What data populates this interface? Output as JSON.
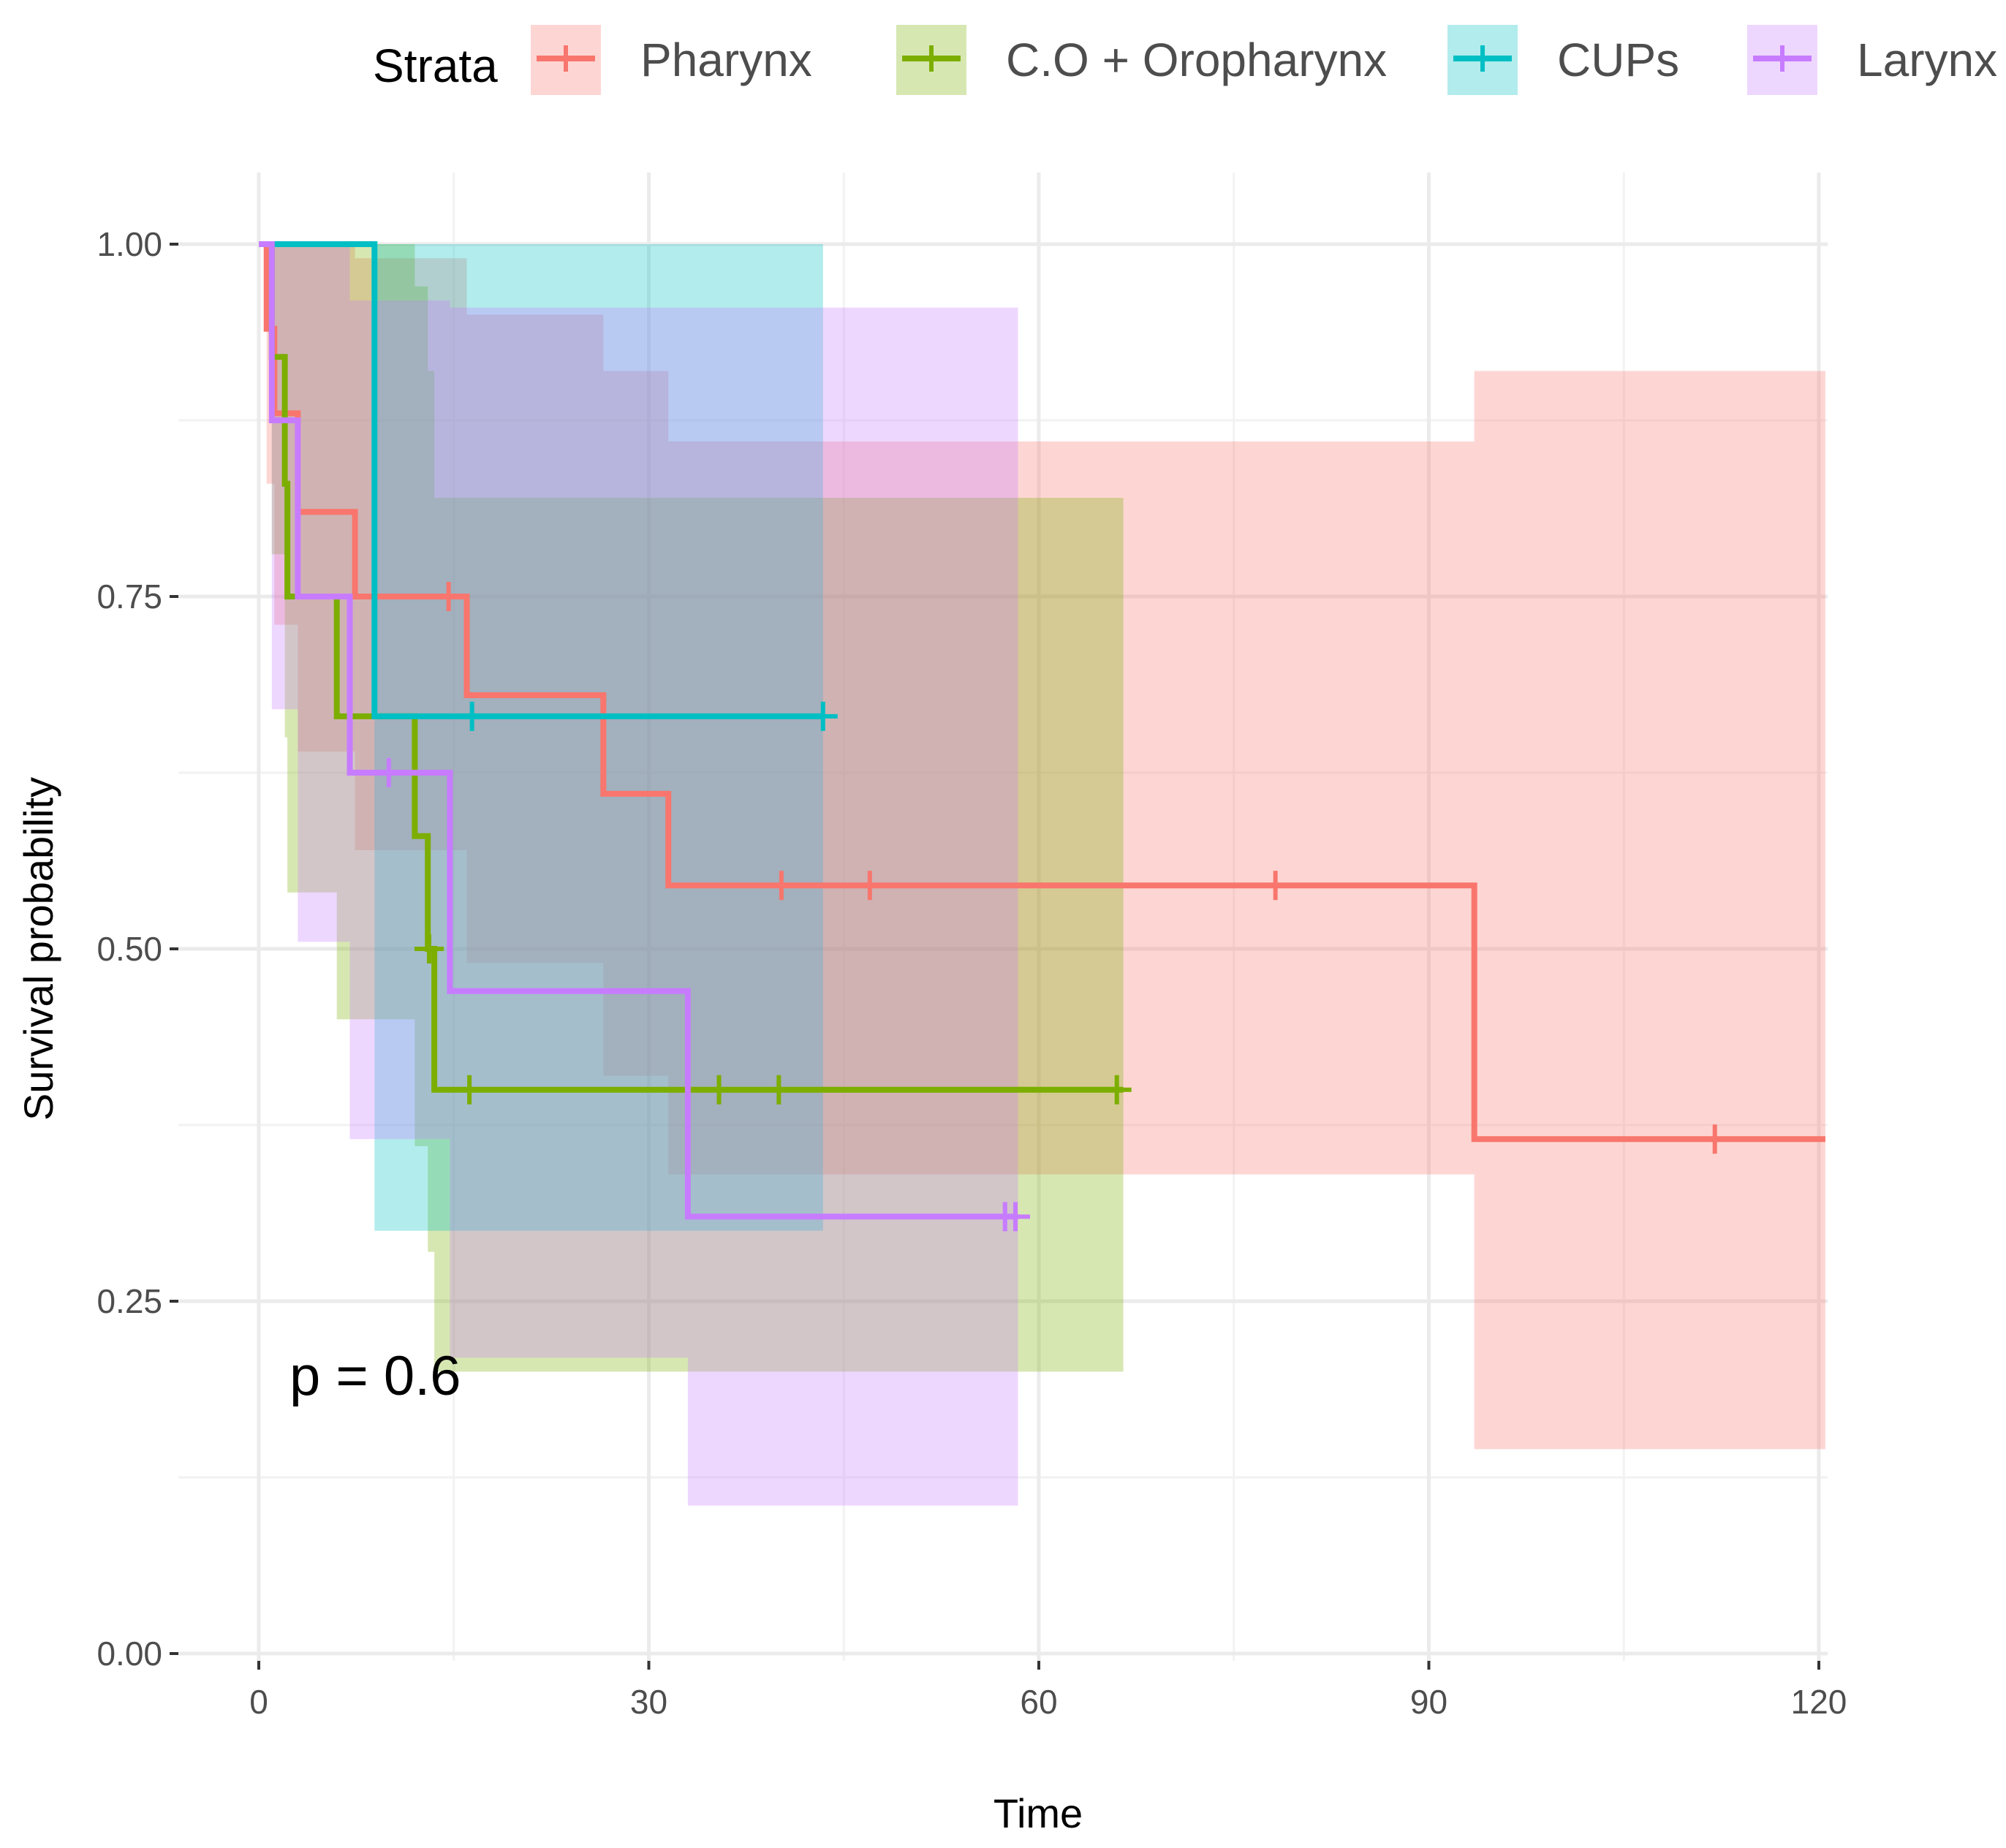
{
  "chart_data": {
    "type": "line",
    "subtype": "kaplan-meier",
    "title": "",
    "xlabel": "Time",
    "ylabel": "Survival probability",
    "xlim": [
      0,
      120
    ],
    "ylim": [
      0,
      1
    ],
    "xticks": [
      0,
      30,
      60,
      90,
      120
    ],
    "xtick_labels": [
      "0",
      "30",
      "60",
      "90",
      "120"
    ],
    "yticks": [
      0,
      0.25,
      0.5,
      0.75,
      1
    ],
    "ytick_labels": [
      "0.00",
      "0.25",
      "0.50",
      "0.75",
      "1.00"
    ],
    "grid": true,
    "legend": {
      "title": "Strata",
      "position": "top"
    },
    "annotation": "p = 0.6",
    "series": [
      {
        "name": "Pharynx",
        "color": "#F8766D",
        "steps": [
          [
            0,
            1.0
          ],
          [
            0.6,
            0.94
          ],
          [
            1.2,
            0.88
          ],
          [
            3.0,
            0.81
          ],
          [
            7.4,
            0.75
          ],
          [
            16.0,
            0.68
          ],
          [
            26.5,
            0.61
          ],
          [
            31.5,
            0.545
          ],
          [
            93.5,
            0.365
          ],
          [
            120.5,
            0.365
          ]
        ],
        "censors": [
          [
            14.6,
            0.75
          ],
          [
            40.2,
            0.545
          ],
          [
            47.0,
            0.545
          ],
          [
            78.2,
            0.545
          ],
          [
            112.0,
            0.365
          ]
        ],
        "ci": [
          [
            0,
            1.0,
            1.0
          ],
          [
            0.6,
            1.0,
            0.83
          ],
          [
            1.2,
            1.0,
            0.73
          ],
          [
            3.0,
            1.0,
            0.64
          ],
          [
            7.4,
            0.99,
            0.57
          ],
          [
            16.0,
            0.95,
            0.49
          ],
          [
            26.5,
            0.91,
            0.41
          ],
          [
            31.5,
            0.86,
            0.34
          ],
          [
            93.5,
            0.91,
            0.145
          ],
          [
            120.5,
            0.91,
            0.145
          ]
        ]
      },
      {
        "name": "C.O + Oropharynx",
        "color": "#7CAE00",
        "steps": [
          [
            0,
            1.0
          ],
          [
            1.0,
            0.92
          ],
          [
            2.0,
            0.83
          ],
          [
            2.2,
            0.75
          ],
          [
            6.0,
            0.665
          ],
          [
            12.0,
            0.58
          ],
          [
            13.0,
            0.5
          ],
          [
            13.5,
            0.4
          ],
          [
            66.5,
            0.4
          ]
        ],
        "censors": [
          [
            13.1,
            0.5
          ],
          [
            16.2,
            0.4
          ],
          [
            35.4,
            0.4
          ],
          [
            40.0,
            0.4
          ],
          [
            66.0,
            0.4
          ]
        ],
        "ci": [
          [
            0,
            1.0,
            1.0
          ],
          [
            1.0,
            1.0,
            0.78
          ],
          [
            2.0,
            1.0,
            0.65
          ],
          [
            2.2,
            1.0,
            0.54
          ],
          [
            6.0,
            1.0,
            0.45
          ],
          [
            12.0,
            0.97,
            0.36
          ],
          [
            13.0,
            0.91,
            0.285
          ],
          [
            13.5,
            0.82,
            0.2
          ],
          [
            66.5,
            0.82,
            0.2
          ]
        ]
      },
      {
        "name": "CUPs",
        "color": "#00BFC4",
        "steps": [
          [
            0,
            1.0
          ],
          [
            8.9,
            0.665
          ],
          [
            43.4,
            0.665
          ]
        ],
        "censors": [
          [
            16.4,
            0.665
          ],
          [
            43.4,
            0.665
          ]
        ],
        "ci": [
          [
            0,
            1.0,
            1.0
          ],
          [
            8.9,
            1.0,
            0.3
          ],
          [
            43.4,
            1.0,
            0.3
          ]
        ]
      },
      {
        "name": "Larynx",
        "color": "#C77CFF",
        "steps": [
          [
            0,
            1.0
          ],
          [
            1.0,
            0.875
          ],
          [
            3.0,
            0.75
          ],
          [
            7.0,
            0.625
          ],
          [
            14.7,
            0.47
          ],
          [
            33.0,
            0.31
          ],
          [
            58.4,
            0.31
          ]
        ],
        "censors": [
          [
            10.0,
            0.625
          ],
          [
            57.4,
            0.31
          ],
          [
            58.2,
            0.31
          ]
        ],
        "ci": [
          [
            0,
            1.0,
            1.0
          ],
          [
            1.0,
            1.0,
            0.67
          ],
          [
            3.0,
            1.0,
            0.505
          ],
          [
            7.0,
            0.96,
            0.365
          ],
          [
            14.7,
            0.955,
            0.21
          ],
          [
            33.0,
            0.955,
            0.105
          ],
          [
            58.4,
            0.955,
            0.105
          ]
        ]
      }
    ]
  }
}
